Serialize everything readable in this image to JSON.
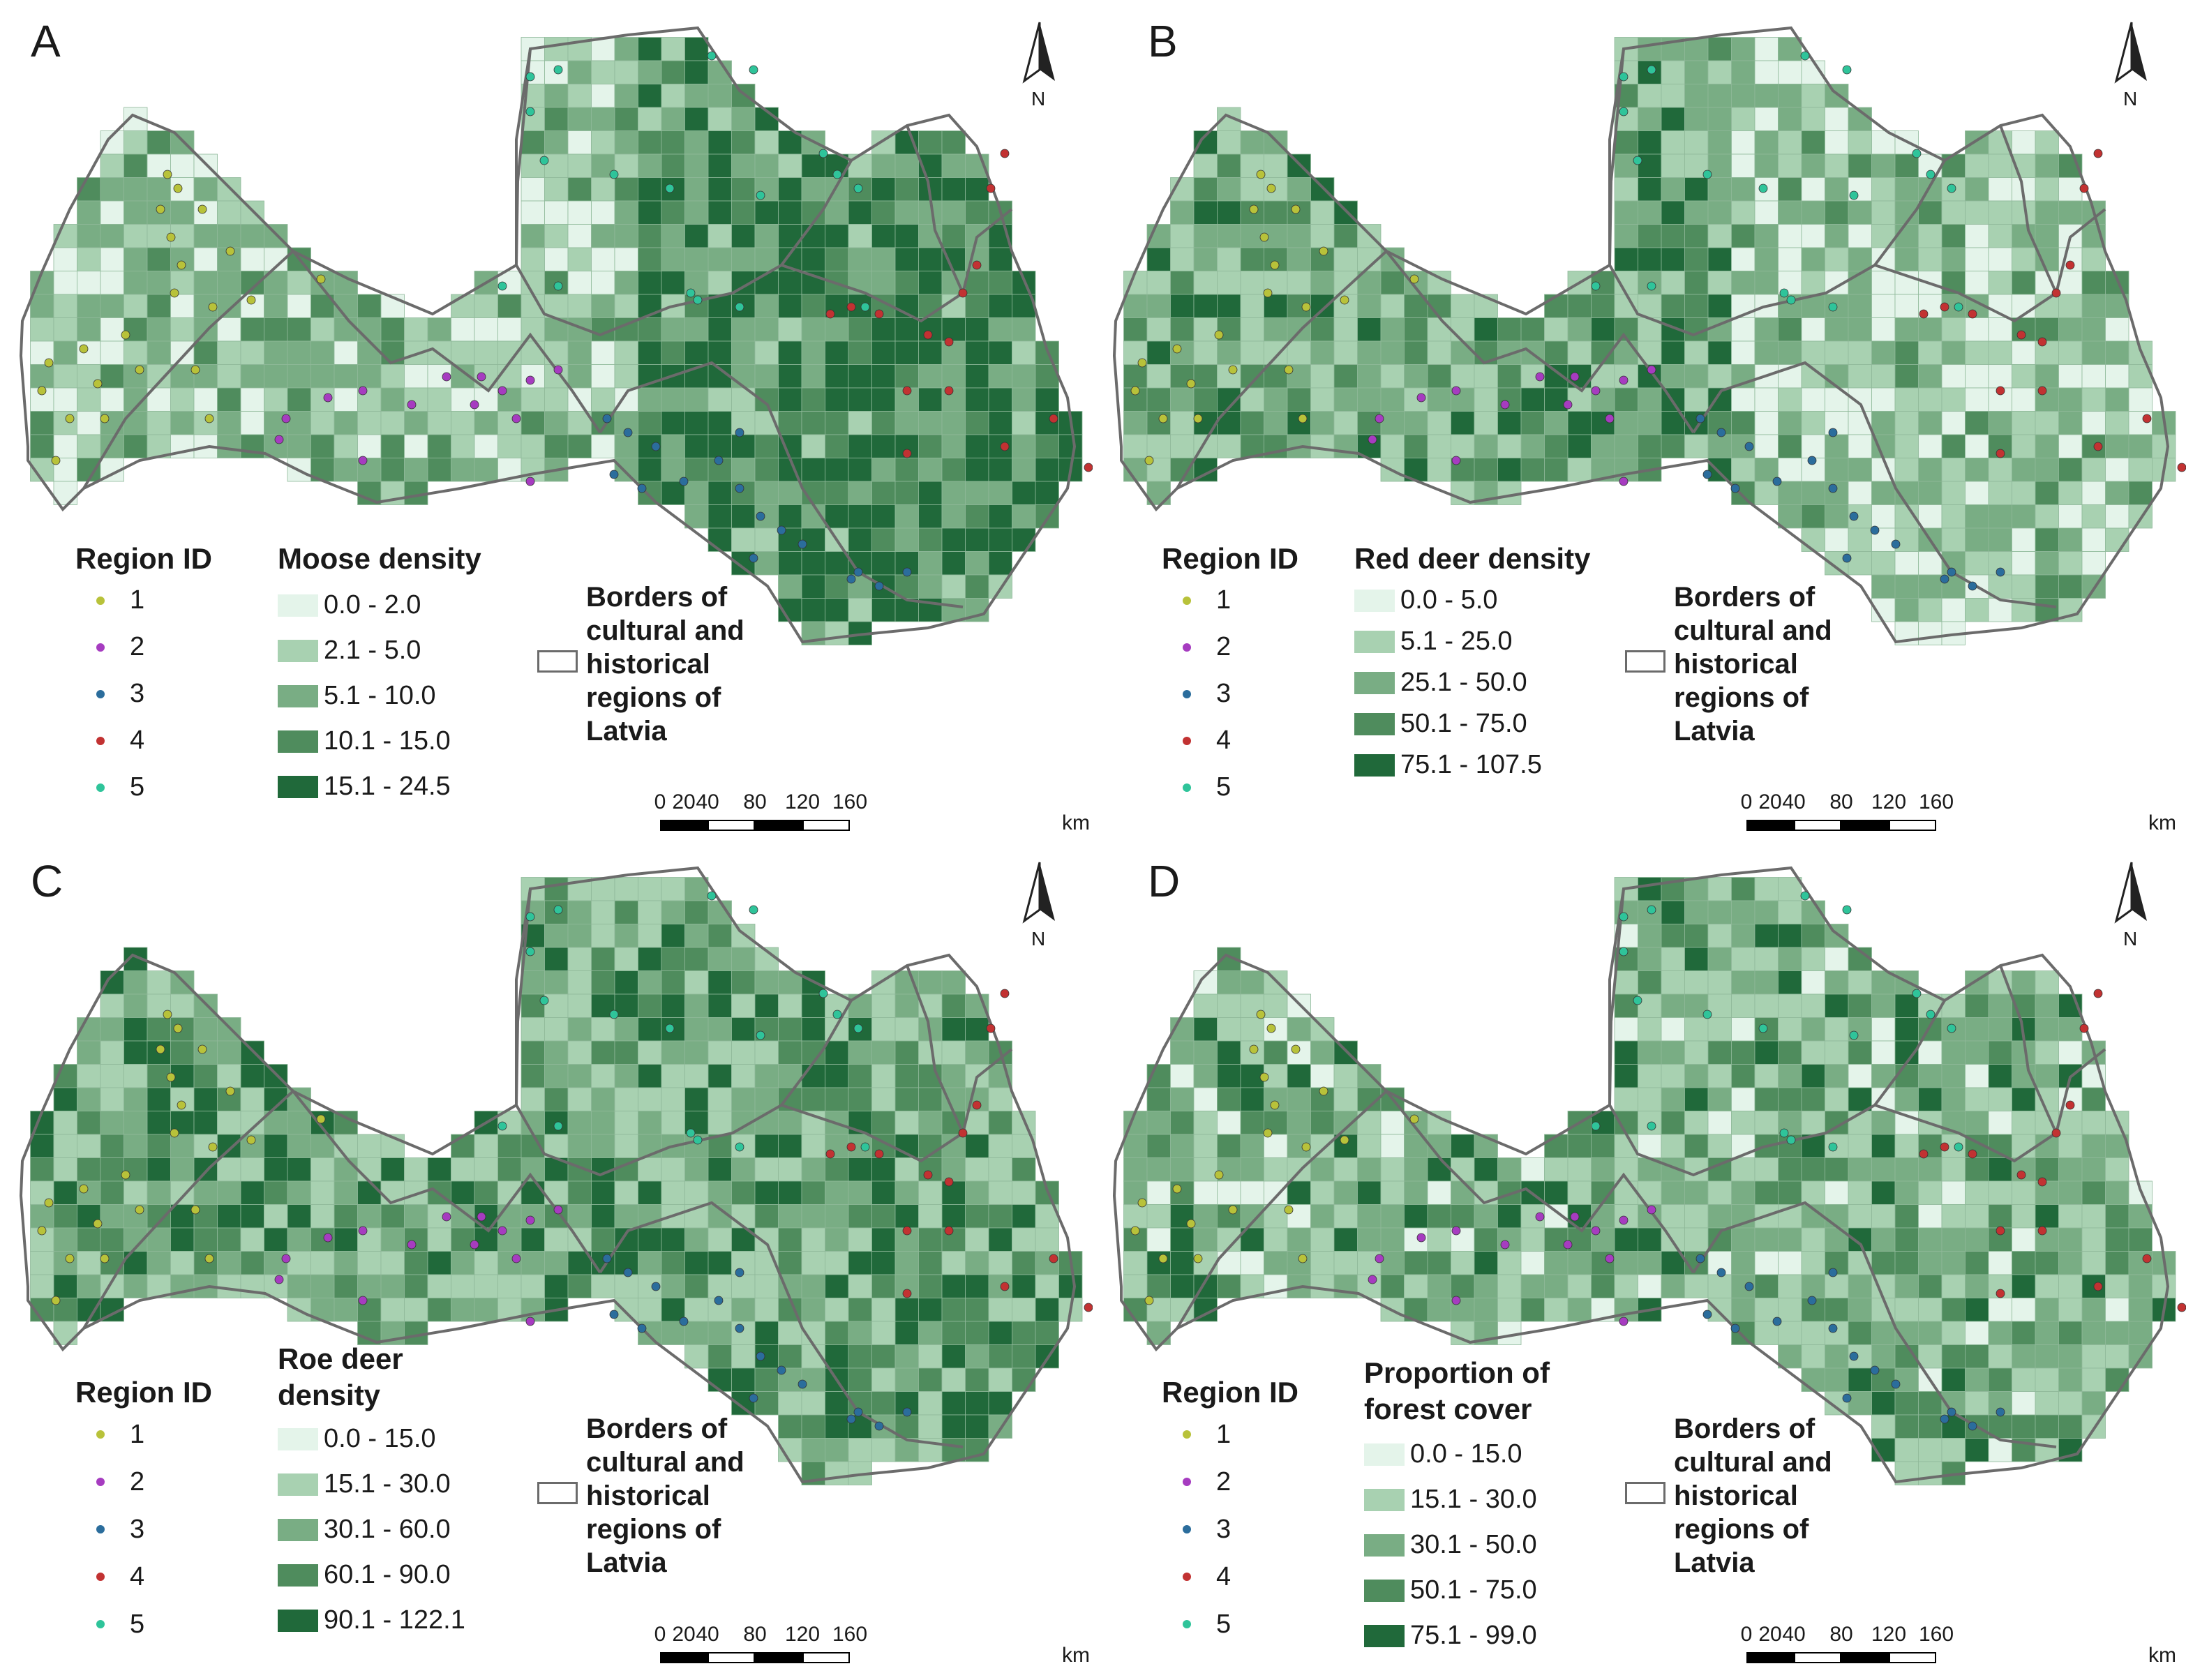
{
  "borders_label": "Borders of cultural and historical regions of Latvia",
  "north_label": "N",
  "region_legend": {
    "title": "Region ID",
    "items": [
      {
        "label": "1",
        "color": "#b8c23a"
      },
      {
        "label": "2",
        "color": "#a63cc0"
      },
      {
        "label": "3",
        "color": "#2b6d9c"
      },
      {
        "label": "4",
        "color": "#c23232"
      },
      {
        "label": "5",
        "color": "#2fc49a"
      }
    ]
  },
  "scale_bar": {
    "unit": "km",
    "ticks": [
      "0",
      "20",
      "40",
      "80",
      "120",
      "160"
    ]
  },
  "class_colors": [
    "#e4f4ea",
    "#a8d1b1",
    "#79ad84",
    "#4f8c5d",
    "#20693a"
  ],
  "panels": [
    {
      "letter": "A",
      "legend_title": "Moose density",
      "classes": [
        "0.0 - 2.0",
        "2.1 - 5.0",
        "5.1 - 10.0",
        "10.1 - 15.0",
        "15.1 - 24.5"
      ]
    },
    {
      "letter": "B",
      "legend_title": "Red deer density",
      "classes": [
        "0.0 - 5.0",
        "5.1 - 25.0",
        "25.1 - 50.0",
        "50.1 - 75.0",
        "75.1 - 107.5"
      ]
    },
    {
      "letter": "C",
      "legend_title": "Roe deer density",
      "classes": [
        "0.0 - 15.0",
        "15.1 - 30.0",
        "30.1 - 60.0",
        "60.1 - 90.0",
        "90.1 - 122.1"
      ]
    },
    {
      "letter": "D",
      "legend_title": "Proportion of forest cover",
      "classes": [
        "0.0 - 15.0",
        "15.1 - 30.0",
        "30.1 - 50.0",
        "50.1 - 75.0",
        "75.1 - 99.0"
      ]
    }
  ]
}
